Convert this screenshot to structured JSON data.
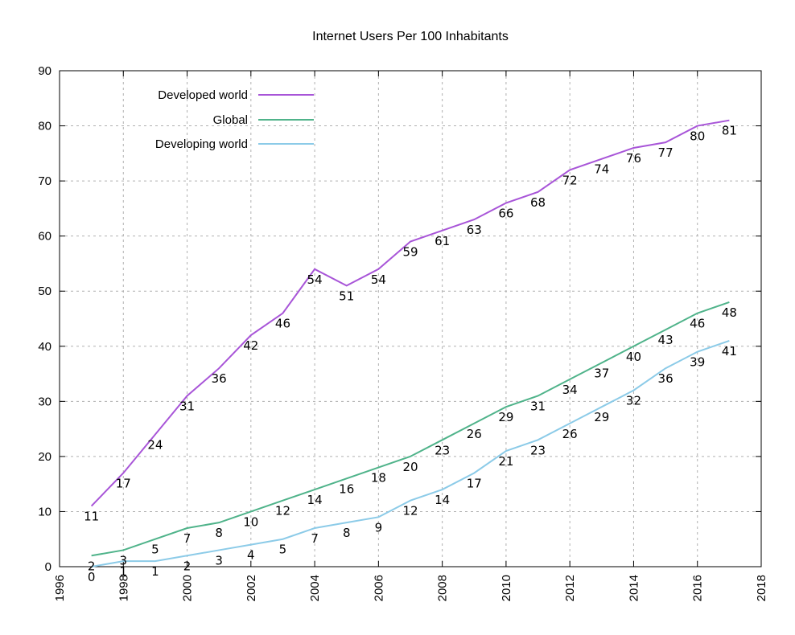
{
  "chart_data": {
    "type": "line",
    "title": "Internet Users Per 100 Inhabitants",
    "xlabel": "",
    "ylabel": "",
    "xlim": [
      1996,
      2018
    ],
    "ylim": [
      0,
      90
    ],
    "xticks": [
      "1996",
      "1998",
      "2000",
      "2002",
      "2004",
      "2006",
      "2008",
      "2010",
      "2012",
      "2014",
      "2016",
      "2018"
    ],
    "yticks": [
      "0",
      "10",
      "20",
      "30",
      "40",
      "50",
      "60",
      "70",
      "80",
      "90"
    ],
    "grid": true,
    "legend_position": "top-left",
    "x": [
      1997,
      1998,
      1999,
      2000,
      2001,
      2002,
      2003,
      2004,
      2005,
      2006,
      2007,
      2008,
      2009,
      2010,
      2011,
      2012,
      2013,
      2014,
      2015,
      2016,
      2017
    ],
    "series": [
      {
        "name": "Developed world",
        "color": "#a855d8",
        "values": [
          11,
          17,
          24,
          31,
          36,
          42,
          46,
          54,
          51,
          54,
          59,
          61,
          63,
          66,
          68,
          72,
          74,
          76,
          77,
          80,
          81
        ],
        "labels": [
          "11",
          "17",
          "24",
          "31",
          "36",
          "42",
          "46",
          "54",
          "51",
          "54",
          "59",
          "61",
          "63",
          "66",
          "68",
          "72",
          "74",
          "76",
          "77",
          "80",
          "81"
        ]
      },
      {
        "name": "Global",
        "color": "#4fb38a",
        "values": [
          2,
          3,
          5,
          7,
          8,
          10,
          12,
          14,
          16,
          18,
          20,
          23,
          26,
          29,
          31,
          34,
          37,
          40,
          43,
          46,
          48
        ],
        "labels": [
          "2",
          "3",
          "5",
          "7",
          "8",
          "10",
          "12",
          "14",
          "16",
          "18",
          "20",
          "23",
          "26",
          "29",
          "31",
          "34",
          "37",
          "40",
          "43",
          "46",
          "48"
        ]
      },
      {
        "name": "Developing world",
        "color": "#8ccbe8",
        "values": [
          0,
          1,
          1,
          2,
          3,
          4,
          5,
          7,
          8,
          9,
          12,
          14,
          17,
          21,
          23,
          26,
          29,
          32,
          36,
          39,
          41
        ],
        "labels": [
          "0",
          "1",
          "1",
          "2",
          "3",
          "4",
          "5",
          "7",
          "8",
          "9",
          "12",
          "14",
          "17",
          "21",
          "23",
          "26",
          "29",
          "32",
          "36",
          "39",
          "41"
        ]
      }
    ]
  }
}
